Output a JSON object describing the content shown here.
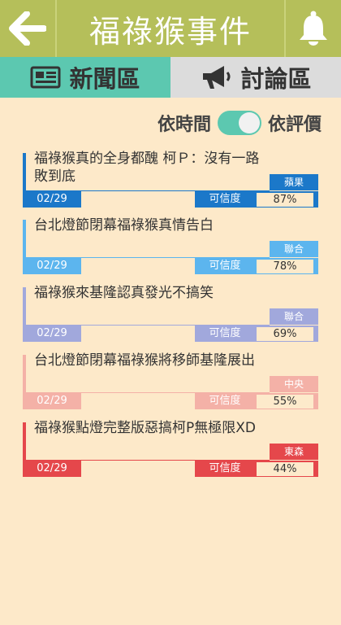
{
  "app": {
    "title": "福祿猴事件"
  },
  "tabs": [
    {
      "label": "新聞區",
      "icon": "newspaper-icon"
    },
    {
      "label": "討論區",
      "icon": "megaphone-icon"
    }
  ],
  "sort": {
    "left_label": "依時間",
    "right_label": "依評價"
  },
  "credibility_label": "可信度",
  "news": [
    {
      "title": "福祿猴真的全身都醜 柯Ｐ：沒有一路敗到底",
      "source": "蘋果",
      "date": "02/29",
      "credibility": "87%",
      "color": "#1b78c9"
    },
    {
      "title": "台北燈節閉幕福祿猴真情告白",
      "source": "聯合",
      "date": "02/29",
      "credibility": "78%",
      "color": "#5cb5ee"
    },
    {
      "title": "福祿猴來基隆認真發光不搞笑",
      "source": "聯合",
      "date": "02/29",
      "credibility": "69%",
      "color": "#a1a8dc"
    },
    {
      "title": "台北燈節閉幕福祿猴將移師基隆展出",
      "source": "中央",
      "date": "02/29",
      "credibility": "55%",
      "color": "#f4b1a7"
    },
    {
      "title": "福祿猴點燈完整版惡搞柯P無極限XD",
      "source": "東森",
      "date": "02/29",
      "credibility": "44%",
      "color": "#e5474b"
    }
  ]
}
